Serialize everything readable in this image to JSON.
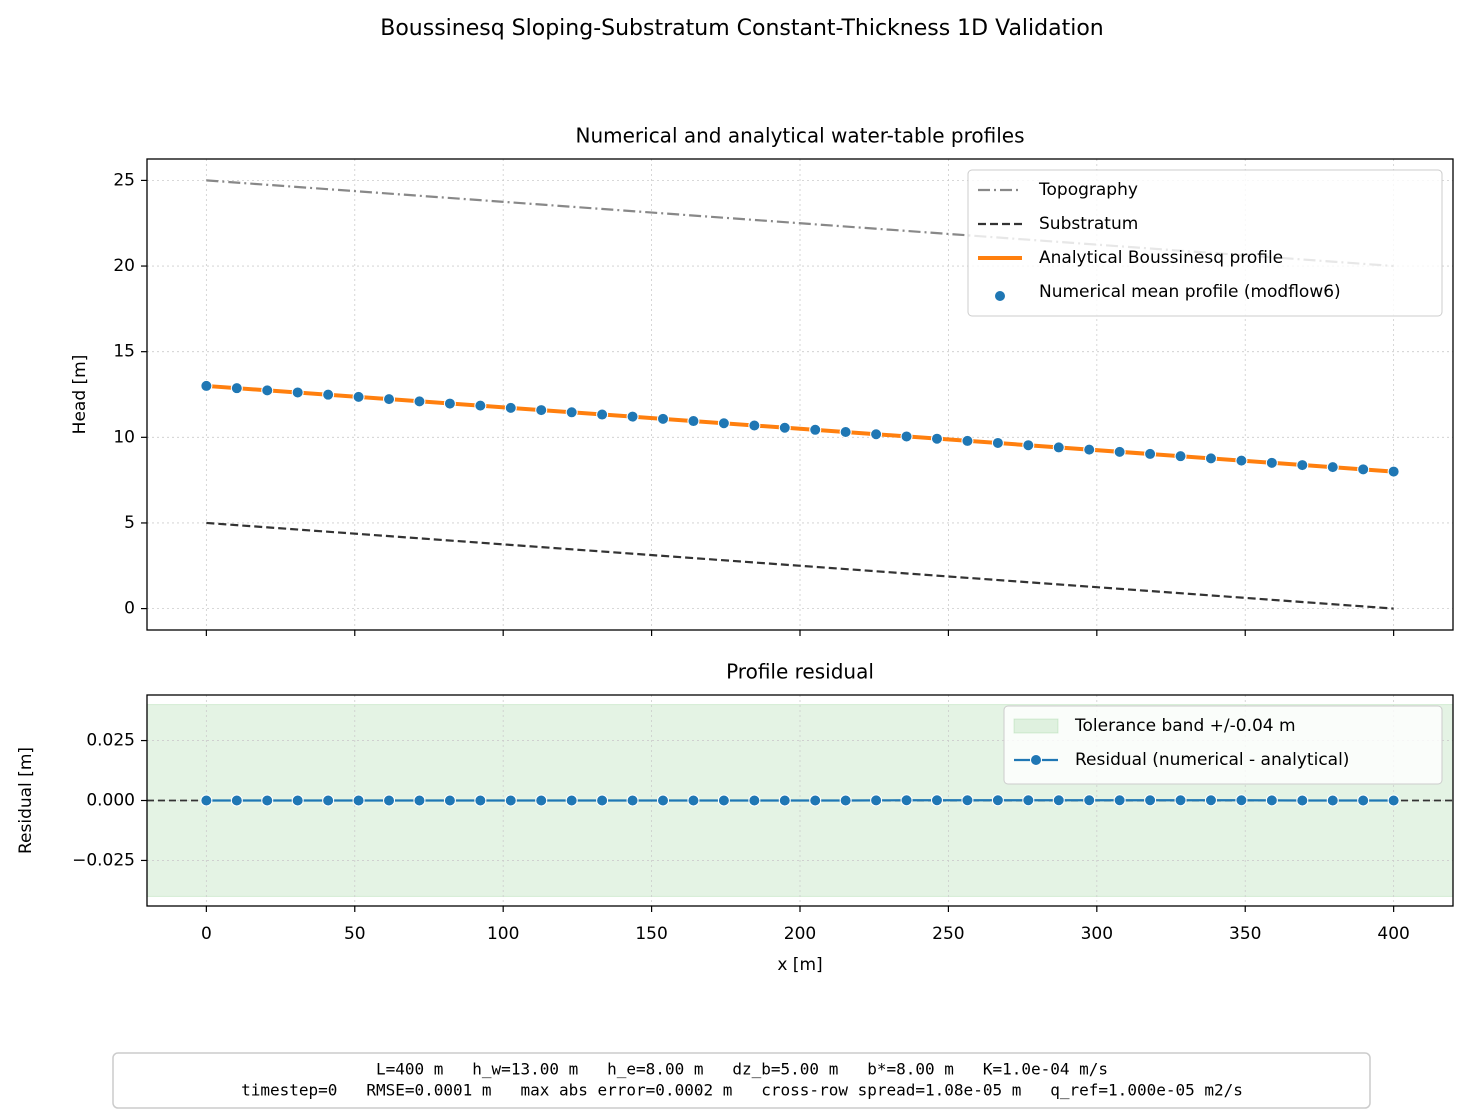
{
  "figure": {
    "title": "Boussinesq Sloping-Substratum Constant-Thickness 1D Validation",
    "footer": [
      "L=400 m   h_w=13.00 m   h_e=8.00 m   dz_b=5.00 m   b*=8.00 m   K=1.0e-04 m/s",
      "timestep=0   RMSE=0.0001 m   max abs error=0.0002 m   cross-row spread=1.08e-05 m   q_ref=1.000e-05 m2/s"
    ]
  },
  "chart_data": [
    {
      "type": "line",
      "title": "Numerical and analytical water-table profiles",
      "ylabel": "Head [m]",
      "xlim": [
        -20,
        420
      ],
      "ylim": [
        -1.25,
        26.25
      ],
      "xticks": [
        0,
        50,
        100,
        150,
        200,
        250,
        300,
        350,
        400
      ],
      "yticks": [
        0,
        5,
        10,
        15,
        20,
        25
      ],
      "grid": true,
      "legend": "upper right",
      "series": [
        {
          "name": "Topography",
          "color": "#888888",
          "style": "dashdot",
          "x": [
            0,
            400
          ],
          "values": [
            25,
            20
          ]
        },
        {
          "name": "Substratum",
          "color": "#333333",
          "style": "dashed",
          "x": [
            0,
            400
          ],
          "values": [
            5,
            0
          ]
        },
        {
          "name": "Analytical Boussinesq profile",
          "color": "#ff7f0e",
          "style": "thick",
          "x": [
            0,
            400
          ],
          "values": [
            13,
            8
          ]
        },
        {
          "name": "Numerical mean profile (modflow6)",
          "color": "#1f77b4",
          "style": "markers",
          "x": [
            0,
            10.26,
            20.51,
            30.77,
            41.03,
            51.28,
            61.54,
            71.79,
            82.05,
            92.31,
            102.56,
            112.82,
            123.08,
            133.33,
            143.59,
            153.85,
            164.1,
            174.36,
            184.62,
            194.87,
            205.13,
            215.38,
            225.64,
            235.9,
            246.15,
            256.41,
            266.67,
            276.92,
            287.18,
            297.44,
            307.69,
            317.95,
            328.21,
            338.46,
            348.72,
            358.97,
            369.23,
            379.49,
            389.74,
            400
          ],
          "values": [
            13,
            12.87,
            12.74,
            12.62,
            12.49,
            12.36,
            12.23,
            12.1,
            11.97,
            11.85,
            11.72,
            11.59,
            11.46,
            11.33,
            11.21,
            11.08,
            10.95,
            10.82,
            10.69,
            10.56,
            10.44,
            10.31,
            10.18,
            10.05,
            9.92,
            9.79,
            9.67,
            9.54,
            9.41,
            9.28,
            9.15,
            9.03,
            8.9,
            8.77,
            8.64,
            8.51,
            8.38,
            8.26,
            8.13,
            8
          ]
        }
      ]
    },
    {
      "type": "line",
      "title": "Profile residual",
      "ylabel": "Residual [m]",
      "xlabel": "x [m]",
      "xlim": [
        -20,
        420
      ],
      "ylim": [
        -0.044,
        0.044
      ],
      "xticks": [
        0,
        50,
        100,
        150,
        200,
        250,
        300,
        350,
        400
      ],
      "yticks": [
        {
          "value": -0.025,
          "label": "−0.025"
        },
        {
          "value": 0,
          "label": "0.000"
        },
        {
          "value": 0.025,
          "label": "0.025"
        }
      ],
      "grid": true,
      "legend": "upper right",
      "hline": 0,
      "series": [
        {
          "name": "Tolerance band +/-0.04 m",
          "color": "#2ca02c",
          "style": "band",
          "values": [
            -0.04,
            0.04
          ]
        },
        {
          "name": "Residual (numerical - analytical)",
          "color": "#1f77b4",
          "style": "line-markers",
          "x": [
            0,
            10.26,
            20.51,
            30.77,
            41.03,
            51.28,
            61.54,
            71.79,
            82.05,
            92.31,
            102.56,
            112.82,
            123.08,
            133.33,
            143.59,
            153.85,
            164.1,
            174.36,
            184.62,
            194.87,
            205.13,
            215.38,
            225.64,
            235.9,
            246.15,
            256.41,
            266.67,
            276.92,
            287.18,
            297.44,
            307.69,
            317.95,
            328.21,
            338.46,
            348.72,
            358.97,
            369.23,
            379.49,
            389.74,
            400
          ],
          "values": [
            0,
            0,
            0,
            0,
            0,
            0,
            0,
            0,
            0,
            0,
            0,
            0,
            0,
            0,
            0,
            0,
            0,
            0,
            0,
            0,
            0,
            0,
            5e-05,
            0.0001,
            0.0001,
            0.0001,
            0.0001,
            0.0001,
            0.0001,
            0.0001,
            0.0001,
            0.0001,
            0.0001,
            0.0001,
            0.0001,
            5e-05,
            0,
            0,
            0,
            0
          ]
        }
      ]
    }
  ]
}
